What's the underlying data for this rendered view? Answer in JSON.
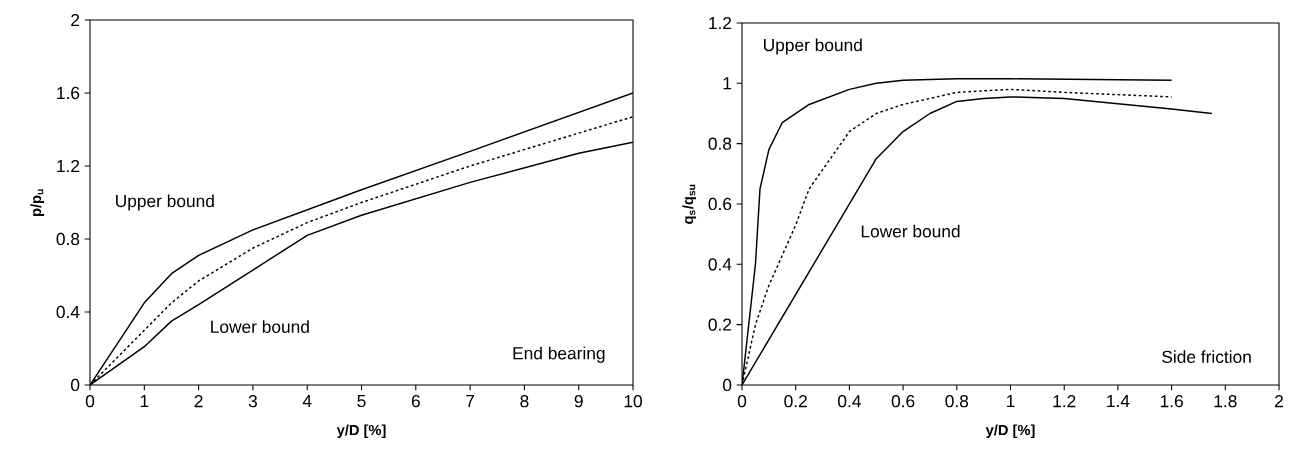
{
  "chart_data": [
    {
      "type": "line",
      "xlabel": "y/D [%]",
      "ylabel": "p/p$_{u}$",
      "xlim": [
        0,
        10
      ],
      "ylim": [
        0,
        2
      ],
      "xticks": [
        0,
        1,
        2,
        3,
        4,
        5,
        6,
        7,
        8,
        9,
        10
      ],
      "yticks": [
        0,
        0.4,
        0.8,
        1.2,
        1.6,
        2
      ],
      "series": [
        {
          "color": "#000000",
          "line_style": "solid",
          "x": [
            0,
            1,
            1.5,
            2,
            3,
            4,
            5,
            7,
            10
          ],
          "values": [
            0,
            0.45,
            0.61,
            0.71,
            0.85,
            0.96,
            1.07,
            1.28,
            1.6
          ]
        },
        {
          "color": "#000000",
          "line_style": "dashed",
          "x": [
            0,
            1,
            1.5,
            2,
            3,
            4,
            5,
            7,
            10
          ],
          "values": [
            0,
            0.3,
            0.45,
            0.57,
            0.75,
            0.89,
            1.0,
            1.2,
            1.47
          ]
        },
        {
          "color": "#000000",
          "line_style": "solid",
          "x": [
            0,
            1,
            1.5,
            2,
            3,
            4,
            5,
            7,
            9,
            10
          ],
          "values": [
            0,
            0.21,
            0.35,
            0.44,
            0.63,
            0.82,
            0.93,
            1.11,
            1.27,
            1.33
          ]
        }
      ],
      "annotations": [
        "Upper bound",
        "Lower bound",
        "End bearing"
      ]
    },
    {
      "type": "line",
      "xlabel": "y/D [%]",
      "ylabel": "q$_{s}$/q$_{su}$",
      "xlim": [
        0,
        2
      ],
      "ylim": [
        0,
        1.2
      ],
      "xticks": [
        0,
        0.2,
        0.4,
        0.6,
        0.8,
        1,
        1.2,
        1.4,
        1.6,
        1.8,
        2
      ],
      "yticks": [
        0,
        0.2,
        0.4,
        0.6,
        0.8,
        1,
        1.2
      ],
      "series": [
        {
          "color": "#000000",
          "line_style": "solid",
          "x": [
            0,
            0.05,
            0.067,
            0.1,
            0.15,
            0.25,
            0.4,
            0.5,
            0.6,
            0.8,
            1.0,
            1.6
          ],
          "values": [
            0,
            0.4,
            0.65,
            0.78,
            0.87,
            0.93,
            0.98,
            1.0,
            1.01,
            1.015,
            1.015,
            1.01
          ]
        },
        {
          "color": "#000000",
          "line_style": "dashed",
          "x": [
            0,
            0.05,
            0.1,
            0.2,
            0.25,
            0.4,
            0.5,
            0.6,
            0.7,
            0.8,
            1.0,
            1.2,
            1.6
          ],
          "values": [
            0,
            0.2,
            0.33,
            0.53,
            0.65,
            0.84,
            0.9,
            0.93,
            0.95,
            0.97,
            0.98,
            0.97,
            0.955
          ]
        },
        {
          "color": "#000000",
          "line_style": "solid",
          "x": [
            0,
            0.5,
            0.6,
            0.7,
            0.8,
            0.9,
            1.0,
            1.2,
            1.6,
            1.75
          ],
          "values": [
            0,
            0.75,
            0.84,
            0.9,
            0.94,
            0.95,
            0.955,
            0.95,
            0.915,
            0.9
          ]
        }
      ],
      "annotations": [
        "Upper bound",
        "Lower bound",
        "Side friction"
      ]
    }
  ]
}
